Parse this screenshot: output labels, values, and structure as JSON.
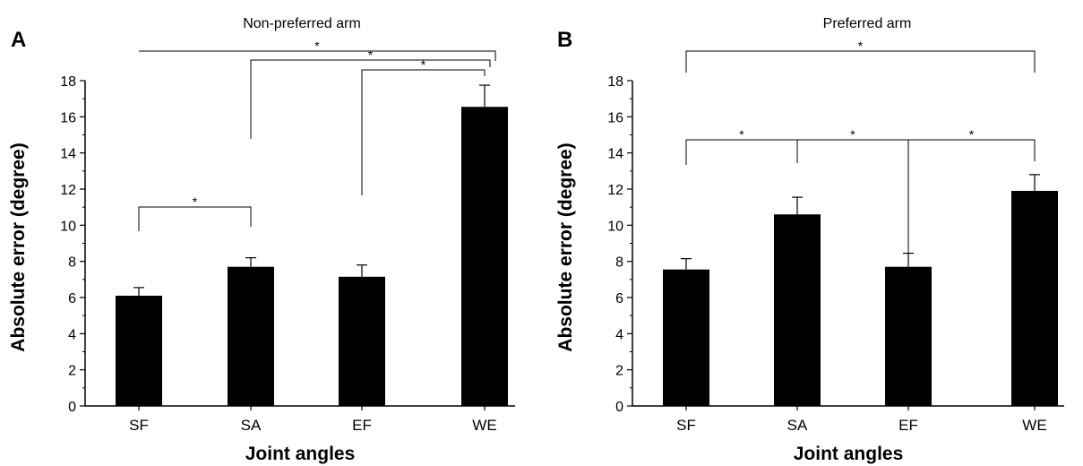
{
  "chart_data": [
    {
      "type": "bar",
      "panel": "A",
      "title": "Non-preferred arm",
      "xlabel": "Joint angles",
      "ylabel": "Absolute error (degree)",
      "categories": [
        "SF",
        "SA",
        "EF",
        "WE"
      ],
      "values": [
        6.1,
        7.7,
        7.15,
        16.55
      ],
      "errors": [
        0.45,
        0.5,
        0.65,
        1.2
      ],
      "ylim": [
        0,
        18
      ],
      "yticks": [
        "0",
        "2",
        "4",
        "6",
        "8",
        "10",
        "12",
        "14",
        "16",
        "18"
      ],
      "significance": [
        {
          "from": "SF",
          "to": "SA",
          "label": "*"
        },
        {
          "from": "SF",
          "to": "WE",
          "label": "*"
        },
        {
          "from": "SA",
          "to": "WE",
          "label": "*"
        },
        {
          "from": "EF",
          "to": "WE",
          "label": "*"
        }
      ],
      "bar_color": "#000000"
    },
    {
      "type": "bar",
      "panel": "B",
      "title": "Preferred arm",
      "xlabel": "Joint angles",
      "ylabel": "Absolute error (degree)",
      "categories": [
        "SF",
        "SA",
        "EF",
        "WE"
      ],
      "values": [
        7.55,
        10.6,
        7.7,
        11.9
      ],
      "errors": [
        0.6,
        0.95,
        0.75,
        0.9
      ],
      "ylim": [
        0,
        18
      ],
      "yticks": [
        "0",
        "2",
        "4",
        "6",
        "8",
        "10",
        "12",
        "14",
        "16",
        "18"
      ],
      "significance": [
        {
          "from": "SF",
          "to": "WE",
          "label": "*"
        },
        {
          "from": "SF",
          "to": "SA",
          "label": "*"
        },
        {
          "from": "SA",
          "to": "EF",
          "label": "*"
        },
        {
          "from": "EF",
          "to": "WE",
          "label": "*"
        }
      ],
      "bar_color": "#000000"
    }
  ]
}
